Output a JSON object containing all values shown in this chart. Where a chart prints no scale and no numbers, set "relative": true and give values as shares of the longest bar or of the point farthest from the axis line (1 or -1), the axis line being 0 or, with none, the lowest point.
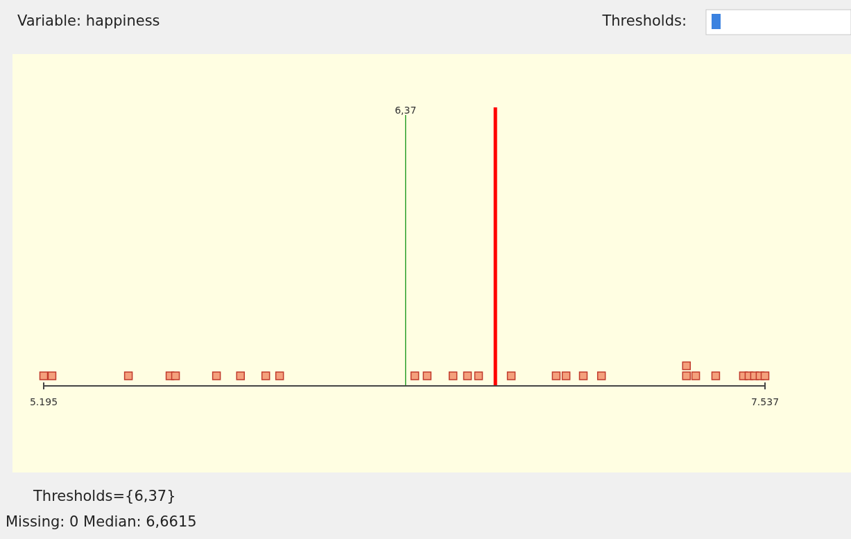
{
  "chart_data": {
    "type": "scatter",
    "title": "Variable: happiness",
    "annotations": [
      "Thresholds:",
      "Thresholds={6,37}",
      "Missing: 0 Median: 6,6615"
    ],
    "relative": true,
    "marker": "square",
    "color": "#f4a07c",
    "x": [
      5.195,
      5.222,
      5.47,
      5.605,
      5.623,
      5.756,
      5.834,
      5.916,
      5.961,
      6.4,
      6.44,
      6.524,
      6.571,
      6.607,
      6.713,
      6.859,
      6.891,
      6.947,
      7.006,
      7.282,
      7.282,
      7.312,
      7.377,
      7.467,
      7.485,
      7.503,
      7.521,
      7.537
    ],
    "values": [
      0.5,
      0.5,
      0.5,
      0.5,
      0.5,
      0.5,
      0.5,
      0.5,
      0.5,
      0.5,
      0.5,
      0.5,
      0.5,
      0.5,
      0.5,
      0.5,
      0.5,
      0.5,
      0.5,
      0.5,
      1,
      0.5,
      0.5,
      0.5,
      0.5,
      0.5,
      0.5,
      0.5
    ],
    "xlim": [
      5.195,
      7.537
    ],
    "xticks": [
      5.195,
      7.537
    ],
    "ref_lines": [
      {
        "axis": "x",
        "value": 6.37,
        "label": "6,37",
        "color": "#2ca02c"
      },
      {
        "axis": "x",
        "value": 6.6615,
        "label": null,
        "color": "#ff0000"
      }
    ]
  }
}
